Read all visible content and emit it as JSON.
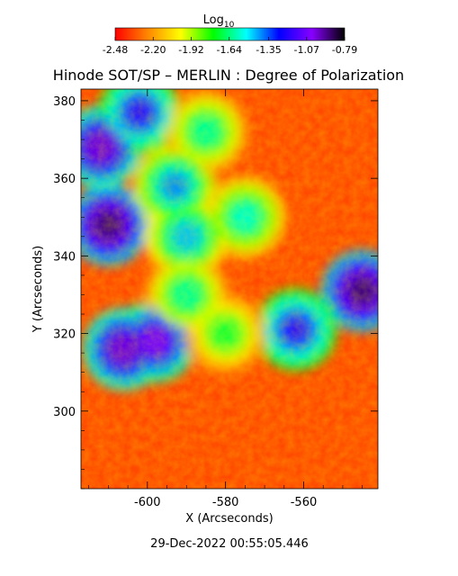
{
  "chart_data": {
    "type": "heatmap",
    "title": "Hinode SOT/SP – MERLIN : Degree of Polarization",
    "xlabel": "X (Arcseconds)",
    "ylabel": "Y (Arcseconds)",
    "xlim": [
      -617,
      -541
    ],
    "ylim": [
      280,
      383
    ],
    "x_ticks": [
      -600,
      -580,
      -560
    ],
    "x_tick_labels": [
      "-600",
      "-580",
      "-560"
    ],
    "y_ticks": [
      300,
      320,
      340,
      360,
      380
    ],
    "y_tick_labels": [
      "300",
      "320",
      "340",
      "360",
      "380"
    ],
    "colorbar": {
      "label_main": "Log",
      "label_sub": "10",
      "range": [
        -2.48,
        -0.79
      ],
      "ticks": [
        -2.48,
        -2.2,
        -1.92,
        -1.64,
        -1.35,
        -1.07,
        -0.79
      ],
      "tick_labels": [
        "-2.48",
        "-2.20",
        "-1.92",
        "-1.64",
        "-1.35",
        "-1.07",
        "-0.79"
      ],
      "colormap": [
        "#ff0000",
        "#ff8800",
        "#ffff00",
        "#00ff00",
        "#00ffff",
        "#0000ff",
        "#8800ff",
        "#000000"
      ]
    },
    "features": [
      {
        "x": -610,
        "y": 348,
        "value": -0.9
      },
      {
        "x": -612,
        "y": 368,
        "value": -1.0
      },
      {
        "x": -606,
        "y": 316,
        "value": -1.0
      },
      {
        "x": -598,
        "y": 318,
        "value": -1.05
      },
      {
        "x": -545,
        "y": 331,
        "value": -0.9
      },
      {
        "x": -562,
        "y": 321,
        "value": -1.2
      },
      {
        "x": -602,
        "y": 377,
        "value": -1.2
      },
      {
        "x": -593,
        "y": 358,
        "value": -1.4
      },
      {
        "x": -590,
        "y": 345,
        "value": -1.45
      },
      {
        "x": -575,
        "y": 350,
        "value": -1.55
      },
      {
        "x": -585,
        "y": 372,
        "value": -1.6
      },
      {
        "x": -580,
        "y": 320,
        "value": -1.7
      },
      {
        "x": -590,
        "y": 330,
        "value": -1.6
      }
    ],
    "background_value": -2.35,
    "timestamp": "29-Dec-2022 00:55:05.446",
    "grid": false
  }
}
